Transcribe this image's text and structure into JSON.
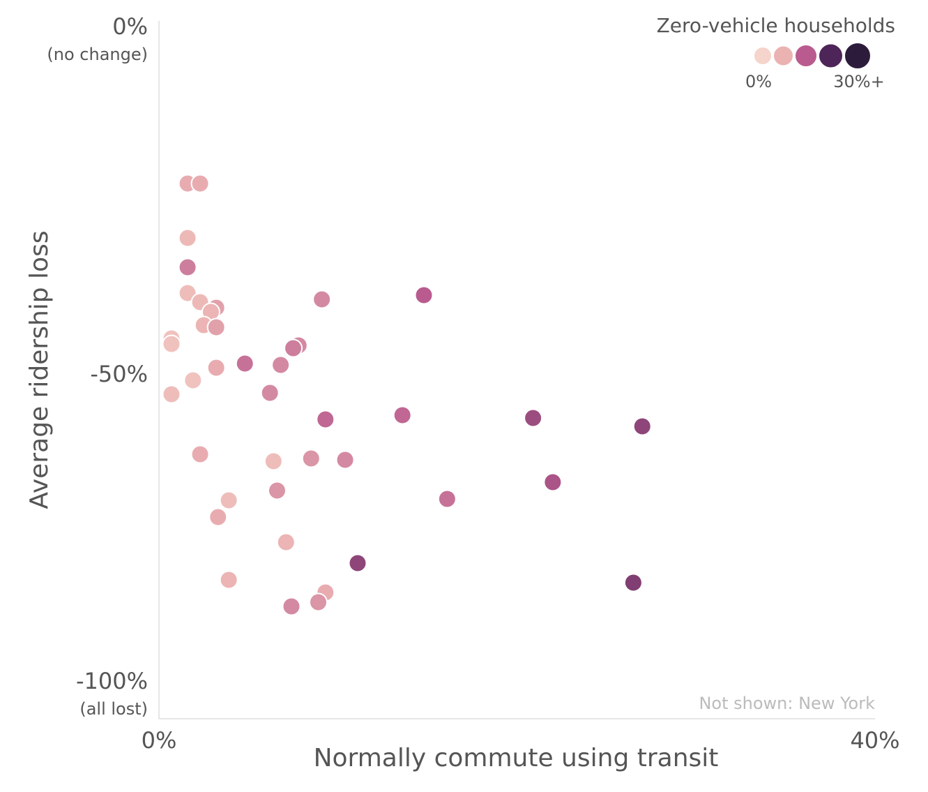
{
  "chart_data": {
    "type": "scatter",
    "x_label": "Normally commute using transit",
    "y_label": "Average ridership loss",
    "annotation": "Not shown: New York",
    "xlim": [
      0,
      40
    ],
    "xticks": [
      {
        "value": 0,
        "label": "0%"
      },
      {
        "value": 40,
        "label": "40%"
      }
    ],
    "ylim": [
      -100,
      0
    ],
    "yticks": [
      {
        "value": 0,
        "label": "0%"
      },
      {
        "value": -50,
        "label": "-50%"
      },
      {
        "value": -100,
        "label": "-100%"
      }
    ],
    "ytick_sublabels": [
      "(no change)",
      null,
      "(all lost)"
    ],
    "color_stops": [
      {
        "value": 0,
        "color": "#f5d4cb"
      },
      {
        "value": 7.5,
        "color": "#ebb2b2"
      },
      {
        "value": 15,
        "color": "#b95b8f"
      },
      {
        "value": 22.5,
        "color": "#4e2558"
      },
      {
        "value": 30,
        "color": "#2d1b3c"
      }
    ],
    "legend": {
      "title": "Zero-vehicle households",
      "values": [
        0,
        7.5,
        15,
        22.5,
        30
      ],
      "ticks": [
        {
          "value": 0,
          "label": "0%"
        },
        {
          "value": 30,
          "label": "30%+"
        }
      ]
    },
    "x": [
      1.6,
      2.3,
      1.6,
      1.6,
      1.6,
      2.3,
      3.2,
      2.9,
      2.5,
      3.2,
      0.7,
      0.7,
      3.2,
      1.9,
      0.7,
      4.8,
      6.8,
      7.8,
      7.5,
      9.1,
      14.8,
      6.2,
      9.3,
      13.6,
      20.9,
      27.0,
      2.3,
      6.4,
      8.5,
      10.4,
      22.0,
      6.6,
      16.1,
      3.9,
      3.3,
      7.1,
      11.1,
      26.5,
      3.9,
      9.3,
      8.9,
      7.4
    ],
    "y": [
      -23.3,
      -23.3,
      -31.1,
      -35.3,
      -39.0,
      -40.3,
      -41.1,
      -41.7,
      -43.6,
      -43.9,
      -45.5,
      -46.3,
      -49.7,
      -51.5,
      -53.5,
      -49.1,
      -49.3,
      -46.5,
      -46.9,
      -39.9,
      -39.3,
      -53.3,
      -57.1,
      -56.5,
      -56.9,
      -58.1,
      -62.1,
      -63.1,
      -62.7,
      -62.9,
      -66.1,
      -67.3,
      -68.5,
      -68.7,
      -71.1,
      -74.7,
      -77.7,
      -80.5,
      -80.1,
      -81.9,
      -83.3,
      -83.9
    ],
    "zero_vehicle": [
      8,
      8,
      6,
      12,
      5,
      6,
      9,
      7,
      7,
      9,
      4,
      4,
      8,
      4,
      5,
      13,
      11,
      11,
      12,
      11,
      15,
      11,
      14,
      14,
      17,
      18,
      8,
      5,
      10,
      11,
      16,
      10,
      13,
      5,
      8,
      7,
      18,
      19,
      7,
      8,
      10,
      11
    ]
  }
}
